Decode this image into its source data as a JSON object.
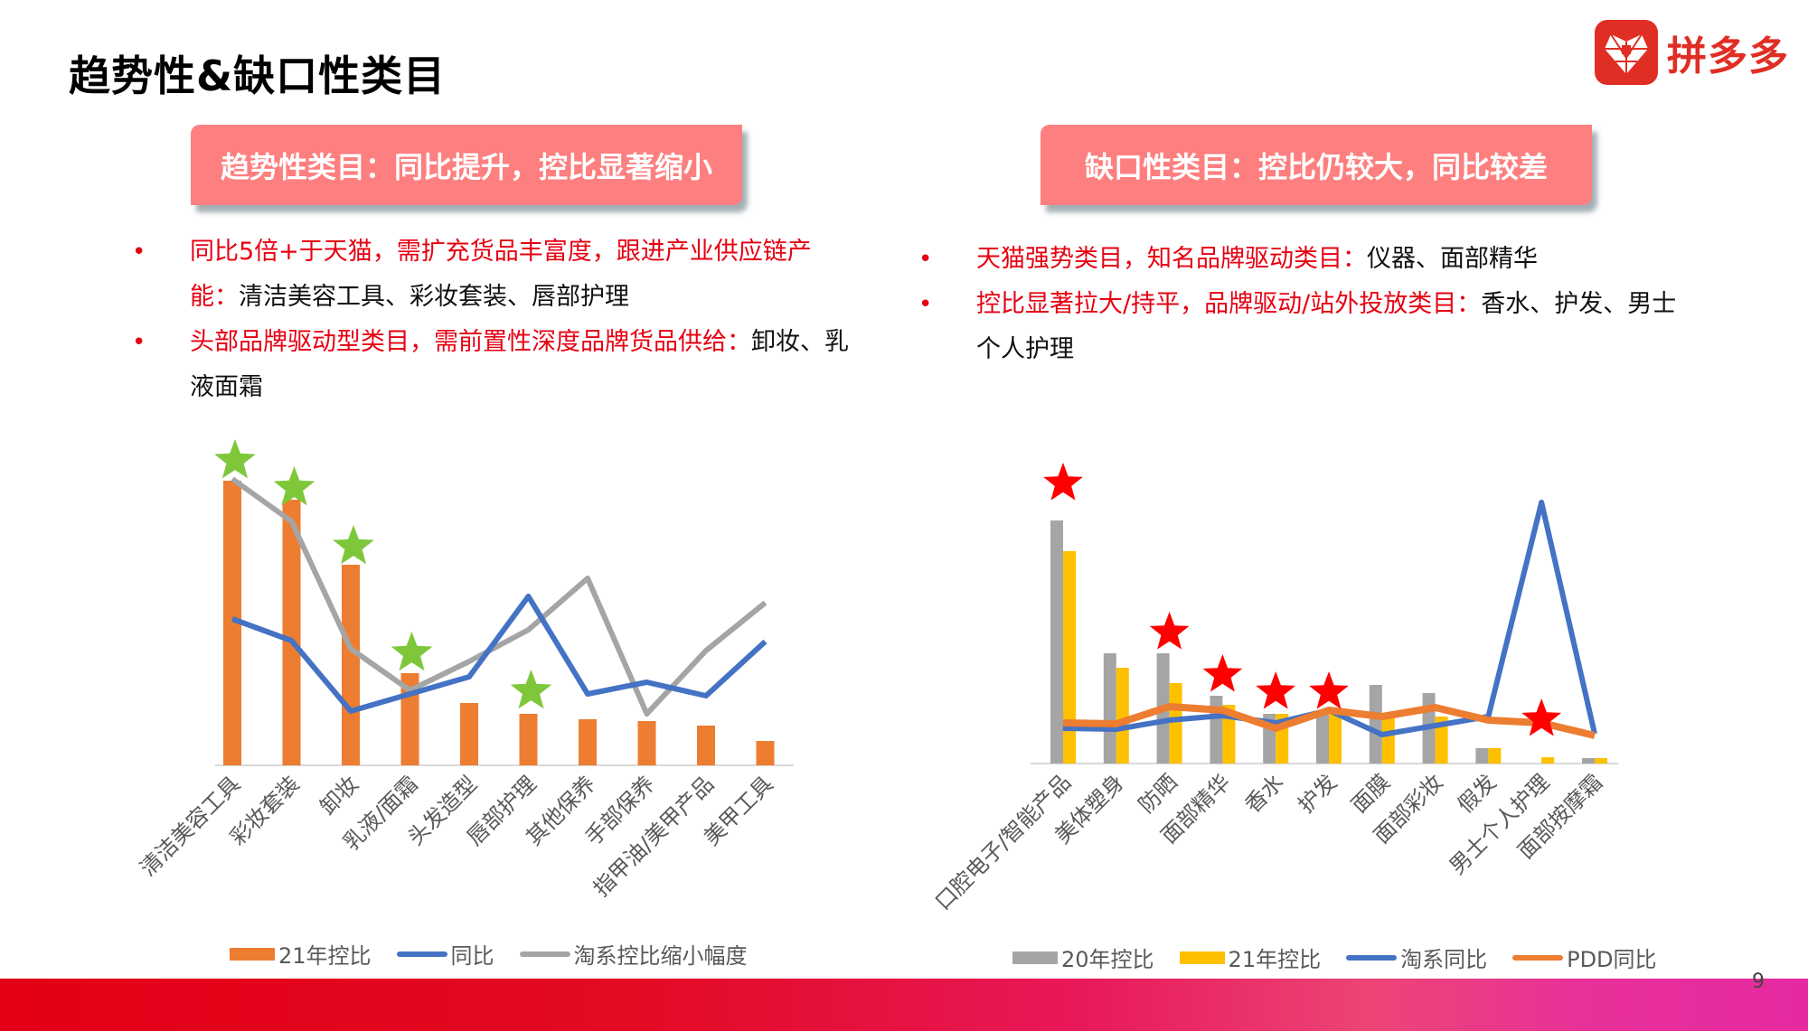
{
  "title": "趋势性&缺口性类目",
  "logo": {
    "icon": "pinduoduo-heart-logo-icon",
    "text": "拼多多",
    "color": "#e02e24"
  },
  "left_panel": {
    "banner": "趋势性类目：同比提升，控比显著缩小",
    "bullets": [
      {
        "red": "同比5倍+于天猫，需扩充货品丰富度，跟进产业供应链产能：",
        "black": "清洁美容工具、彩妆套装、唇部护理"
      },
      {
        "red": "头部品牌驱动型类目，需前置性深度品牌货品供给：",
        "black": "卸妆、乳液面霜"
      }
    ]
  },
  "right_panel": {
    "banner": "缺口性类目：控比仍较大，同比较差",
    "bullets": [
      {
        "red": "天猫强势类目，知名品牌驱动类目：",
        "black": "仪器、面部精华"
      },
      {
        "red": "控比显著拉大/持平，品牌驱动/站外投放类目：",
        "black": "香水、护发、男士个人护理"
      }
    ]
  },
  "chart_data": [
    {
      "type": "bar",
      "title": "",
      "xlabel": "",
      "ylabel": "",
      "grid": false,
      "legend_position": "bottom",
      "categories": [
        "清洁美容工具",
        "彩妆套装",
        "卸妆",
        "乳液/面霜",
        "头发造型",
        "唇部护理",
        "其他保养",
        "手部保养",
        "指甲油/美甲产品",
        "美甲工具"
      ],
      "series": [
        {
          "name": "21年控比",
          "kind": "bar",
          "color": "#ed7d31",
          "values": [
            315,
            294,
            222,
            102,
            69,
            57,
            51,
            49,
            44,
            27
          ]
        },
        {
          "name": "同比",
          "kind": "line",
          "color": "#4472c4",
          "values": [
            162,
            138,
            60,
            79,
            98,
            187,
            79,
            92,
            77,
            137
          ]
        },
        {
          "name": "淘系控比缩小幅度",
          "kind": "line",
          "color": "#a5a5a5",
          "values": [
            317,
            270,
            129,
            83,
            115,
            150,
            207,
            57,
            127,
            180
          ]
        }
      ],
      "annotations": [
        {
          "type": "star",
          "color": "#7ec73b",
          "categories": [
            "清洁美容工具",
            "彩妆套装",
            "卸妆",
            "乳液/面霜",
            "唇部护理"
          ]
        }
      ],
      "note": "Values are relative heights in px; no axis scale shown"
    },
    {
      "type": "bar",
      "title": "",
      "xlabel": "",
      "ylabel": "",
      "grid": false,
      "legend_position": "bottom",
      "categories": [
        "口腔电子/智能产品",
        "美体塑身",
        "防晒",
        "面部精华",
        "香水",
        "护发",
        "面膜",
        "面部彩妆",
        "假发",
        "男士个人护理",
        "面部按摩霜"
      ],
      "series": [
        {
          "name": "20年控比",
          "kind": "bar",
          "color": "#a5a5a5",
          "values": [
            269,
            122,
            122,
            75,
            55,
            55,
            87,
            78,
            17,
            0,
            6
          ]
        },
        {
          "name": "21年控比",
          "kind": "bar",
          "color": "#ffc000",
          "values": [
            235,
            106,
            89,
            65,
            55,
            55,
            55,
            52,
            17,
            7,
            6
          ]
        },
        {
          "name": "淘系同比",
          "kind": "line",
          "color": "#4472c4",
          "values": [
            39,
            38,
            48,
            53,
            45,
            59,
            32,
            42,
            52,
            289,
            33
          ]
        },
        {
          "name": "PDD同比",
          "kind": "line",
          "color": "#ed7d31",
          "values": [
            45,
            44,
            63,
            59,
            39,
            59,
            52,
            62,
            48,
            45,
            31
          ]
        }
      ],
      "annotations": [
        {
          "type": "star",
          "color": "#ff0000",
          "categories": [
            "口腔电子/智能产品",
            "防晒",
            "面部精华",
            "香水",
            "护发",
            "男士个人护理"
          ]
        }
      ],
      "note": "Values are relative heights in px; no axis scale shown"
    }
  ],
  "legends": {
    "left": [
      {
        "label": "21年控比",
        "kind": "bar",
        "color": "#ed7d31"
      },
      {
        "label": "同比",
        "kind": "line",
        "color": "#4472c4"
      },
      {
        "label": "淘系控比缩小幅度",
        "kind": "line",
        "color": "#a5a5a5"
      }
    ],
    "right": [
      {
        "label": "20年控比",
        "kind": "bar",
        "color": "#a5a5a5"
      },
      {
        "label": "21年控比",
        "kind": "bar",
        "color": "#ffc000"
      },
      {
        "label": "淘系同比",
        "kind": "line",
        "color": "#4472c4"
      },
      {
        "label": "PDD同比",
        "kind": "line",
        "color": "#ed7d31"
      }
    ]
  },
  "page_number": "9"
}
